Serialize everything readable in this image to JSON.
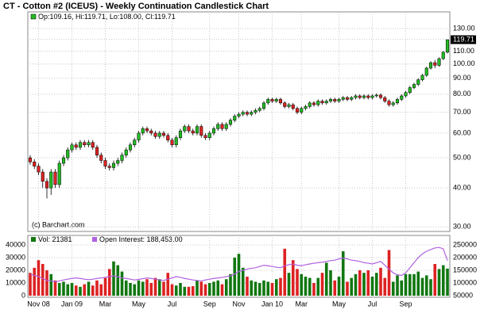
{
  "chart_data": {
    "type": "candlestick",
    "title": "CT - Cotton #2 (ICEUS) - Weekly Continuation Candlestick Chart",
    "ohlc_label": "Op:109.16, Hi:119.71, Lo:108.00, Cl:119.71",
    "source": "(c) Barchart.com",
    "close_value_label": "119.71",
    "up_color": "#22bb22",
    "down_color": "#dd2222",
    "log_scale": true,
    "grid": true,
    "ylim": [
      29,
      147
    ],
    "yticks": [
      {
        "value": 30,
        "label": "30.00"
      },
      {
        "value": 40,
        "label": "40.00"
      },
      {
        "value": 50,
        "label": "50.00"
      },
      {
        "value": 60,
        "label": "60.00"
      },
      {
        "value": 70,
        "label": "70.00"
      },
      {
        "value": 80,
        "label": "80.00"
      },
      {
        "value": 90,
        "label": "90.00"
      },
      {
        "value": 100,
        "label": "100.00"
      },
      {
        "value": 110,
        "label": "110.00"
      },
      {
        "value": 120,
        "label": "120.00"
      },
      {
        "value": 130,
        "label": "130.00"
      }
    ],
    "xticks": [
      {
        "value": 2,
        "label": "Nov 08"
      },
      {
        "value": 10,
        "label": "Jan 09"
      },
      {
        "value": 18,
        "label": "Mar"
      },
      {
        "value": 26,
        "label": "May"
      },
      {
        "value": 34,
        "label": "Jul"
      },
      {
        "value": 43,
        "label": "Sep"
      },
      {
        "value": 50,
        "label": "Nov"
      },
      {
        "value": 58,
        "label": "Jan 10"
      },
      {
        "value": 65,
        "label": "Mar"
      },
      {
        "value": 74,
        "label": "May"
      },
      {
        "value": 82,
        "label": "Jul"
      },
      {
        "value": 90,
        "label": "Sep"
      }
    ],
    "open": [
      50,
      48.5,
      47,
      45,
      42,
      40,
      45,
      41,
      48,
      50,
      53,
      55,
      54,
      56,
      55,
      56,
      54,
      51,
      49,
      47,
      46.5,
      48,
      49,
      51,
      53,
      55,
      57,
      60,
      62,
      61,
      60,
      58.5,
      60,
      59,
      57,
      55,
      58,
      61,
      63,
      61,
      60,
      63,
      59,
      58,
      60,
      62,
      64,
      62,
      64,
      66,
      68,
      69,
      70,
      69,
      70,
      71,
      72,
      75,
      77,
      76,
      77,
      75,
      73,
      74,
      72,
      70,
      72,
      73,
      75,
      74,
      76,
      75,
      76,
      77,
      76,
      77,
      78,
      77,
      78,
      79,
      78,
      79,
      78,
      79,
      79.5,
      78,
      76,
      74,
      75,
      77,
      79,
      81,
      84,
      86,
      89,
      92,
      97,
      101,
      99,
      104,
      109.16
    ],
    "high": [
      51,
      49.5,
      48,
      46,
      43,
      46,
      46,
      49,
      51,
      54,
      56,
      56,
      57,
      57,
      57,
      57,
      55,
      52,
      50,
      48,
      49,
      50,
      52,
      54,
      56,
      58,
      61,
      63,
      63,
      62,
      61,
      61,
      61,
      60,
      58,
      59,
      62,
      64,
      64,
      62,
      64,
      64,
      60,
      61,
      63,
      65,
      65,
      65,
      67,
      69,
      70,
      71,
      71,
      71,
      72,
      73,
      76,
      78,
      78,
      78,
      78,
      76,
      75,
      75,
      73,
      73,
      74,
      76,
      76,
      77,
      77,
      77,
      78,
      78,
      78,
      79,
      79,
      79,
      80,
      80,
      80,
      80,
      80,
      80.5,
      80.5,
      79,
      77,
      76,
      78,
      80,
      82,
      85,
      87,
      90,
      93,
      98,
      102,
      103,
      105,
      110,
      119.71
    ],
    "low": [
      47.5,
      46,
      44,
      40,
      37,
      38,
      40,
      40,
      47,
      49,
      52,
      53,
      53,
      54,
      54,
      53,
      50,
      48,
      46,
      45.5,
      45.5,
      47,
      48,
      50,
      52,
      54,
      56,
      59,
      60,
      59,
      57.5,
      57.5,
      58,
      56,
      54,
      54,
      57,
      60,
      60,
      59,
      59,
      58,
      57,
      57,
      59,
      61,
      61,
      61,
      63,
      65,
      67,
      68,
      68,
      68,
      69,
      70,
      71,
      74,
      75,
      75,
      74,
      72,
      72,
      71,
      69,
      69,
      71,
      72,
      73,
      73,
      74,
      74,
      75,
      75,
      75,
      76,
      76,
      76,
      77,
      77,
      77,
      77,
      77,
      78,
      77,
      75,
      73,
      73,
      74,
      76,
      78,
      80,
      83,
      85,
      88,
      91,
      96,
      97,
      98,
      103,
      108
    ],
    "close": [
      48.5,
      47,
      45,
      42,
      40,
      45,
      41,
      48,
      50,
      53,
      55,
      54,
      56,
      55,
      56,
      54,
      51,
      49,
      47,
      46.5,
      48,
      49,
      51,
      53,
      55,
      57,
      60,
      62,
      61,
      60,
      58.5,
      60,
      59,
      57,
      55,
      58,
      61,
      63,
      61,
      60,
      63,
      59,
      58,
      60,
      62,
      64,
      62,
      64,
      66,
      68,
      69,
      70,
      69,
      70,
      71,
      72,
      75,
      77,
      76,
      77,
      75,
      73,
      74,
      72,
      70,
      72,
      73,
      75,
      74,
      76,
      75,
      76,
      77,
      76,
      77,
      78,
      77,
      78,
      79,
      78,
      79,
      78,
      79,
      79.5,
      78,
      76,
      74,
      75,
      77,
      79,
      81,
      84,
      86,
      89,
      92,
      97,
      101,
      99,
      104,
      109.16,
      119.71
    ],
    "volume": {
      "name": "Vol: 21381",
      "color": "#117711",
      "down_color": "#dd2222",
      "ylim": [
        0,
        45000
      ],
      "yticks": [
        0,
        10000,
        20000,
        30000,
        40000
      ],
      "values": [
        18000,
        22000,
        28000,
        25000,
        20000,
        17000,
        12000,
        10000,
        11000,
        9000,
        10000,
        8000,
        7000,
        9000,
        11000,
        8000,
        12000,
        9000,
        14000,
        21000,
        27000,
        24000,
        19000,
        12000,
        10000,
        9000,
        12000,
        11000,
        13000,
        10000,
        14000,
        13000,
        11000,
        18000,
        9000,
        8000,
        10000,
        7000,
        7000,
        7500,
        12000,
        11000,
        9000,
        10000,
        11000,
        12000,
        9000,
        13000,
        17000,
        30000,
        33000,
        22000,
        15000,
        12000,
        11000,
        10000,
        12000,
        11000,
        10000,
        13000,
        14000,
        37000,
        18000,
        28000,
        21000,
        17000,
        15000,
        14000,
        10000,
        14000,
        18000,
        26000,
        20000,
        12000,
        15000,
        35000,
        11000,
        14000,
        17000,
        20000,
        18000,
        20000,
        15000,
        18000,
        22000,
        14000,
        36000,
        11000,
        16000,
        12000,
        17000,
        17000,
        17000,
        19000,
        14000,
        16000,
        13000,
        25000,
        21000,
        24000,
        21381
      ]
    },
    "open_interest": {
      "name": "Open Interest: 188,453.00",
      "color": "#b060e0",
      "y2lim": [
        50000,
        275000
      ],
      "y2ticks": [
        50000,
        100000,
        150000,
        200000,
        250000
      ],
      "values": [
        135000,
        130000,
        125000,
        118000,
        110000,
        108000,
        105000,
        108000,
        112000,
        115000,
        118000,
        120000,
        118000,
        115000,
        113000,
        115000,
        118000,
        120000,
        122000,
        125000,
        128000,
        125000,
        120000,
        118000,
        115000,
        112000,
        114000,
        117000,
        120000,
        118000,
        115000,
        112000,
        110000,
        115000,
        120000,
        125000,
        122000,
        118000,
        115000,
        112000,
        110000,
        108000,
        112000,
        115000,
        118000,
        120000,
        122000,
        125000,
        128000,
        135000,
        145000,
        150000,
        155000,
        158000,
        160000,
        165000,
        170000,
        168000,
        165000,
        162000,
        160000,
        168000,
        172000,
        175000,
        170000,
        168000,
        172000,
        175000,
        178000,
        180000,
        182000,
        185000,
        188000,
        190000,
        195000,
        198000,
        195000,
        190000,
        188000,
        185000,
        180000,
        178000,
        175000,
        180000,
        185000,
        170000,
        155000,
        140000,
        132000,
        130000,
        140000,
        160000,
        180000,
        200000,
        215000,
        225000,
        232000,
        238000,
        240000,
        235000,
        188453
      ]
    }
  }
}
